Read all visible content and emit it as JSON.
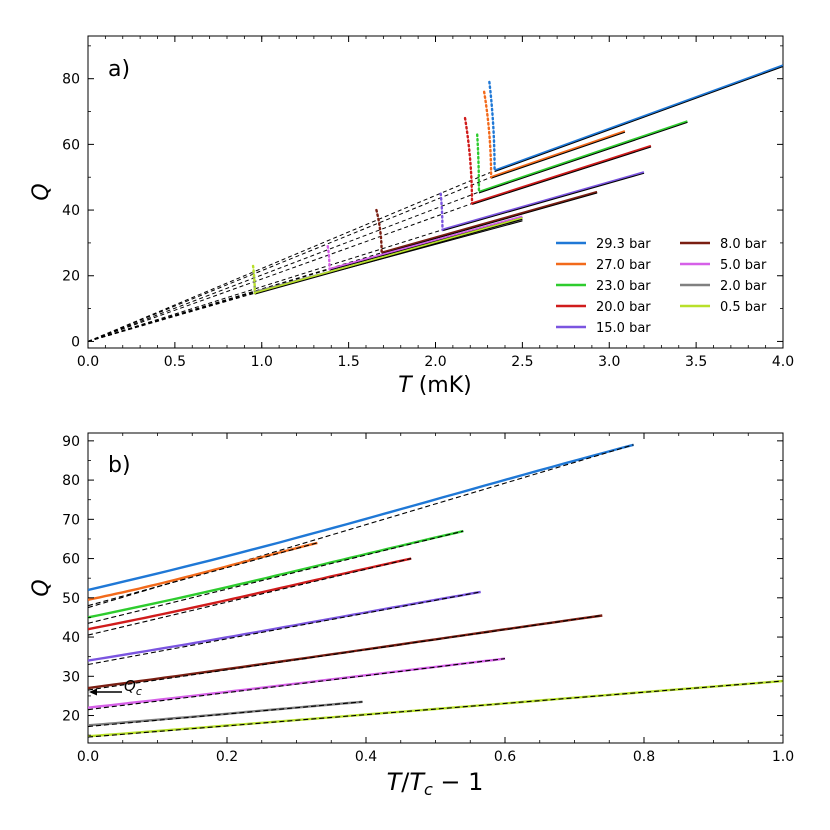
{
  "colors": {
    "p29_3": "#1f78d6",
    "p27_0": "#f26a1b",
    "p23_0": "#2ecc2e",
    "p20_0": "#d01c1c",
    "p15_0": "#7b55e0",
    "p8_0": "#7a1e12",
    "p5_0": "#d660e8",
    "p2_0": "#808080",
    "p0_5": "#b8e02a",
    "fit": "#000000"
  },
  "chart_data": [
    {
      "type": "line",
      "panel_label": "a)",
      "title": "",
      "xlabel_symbol": "T",
      "xlabel_unit": " (mK)",
      "ylabel": "Q",
      "xlim": [
        0,
        4.0
      ],
      "ylim": [
        -2,
        93
      ],
      "xticks": [
        0.0,
        0.5,
        1.0,
        1.5,
        2.0,
        2.5,
        3.0,
        3.5,
        4.0
      ],
      "xtick_labels": [
        "0.0",
        "0.5",
        "1.0",
        "1.5",
        "2.0",
        "2.5",
        "3.0",
        "3.5",
        "4.0"
      ],
      "yticks": [
        0,
        20,
        40,
        60,
        80
      ],
      "ytick_labels": [
        "0",
        "20",
        "40",
        "60",
        "80"
      ],
      "legend_position": "lower-right",
      "legend": [
        {
          "label": "29.3 bar",
          "color_key": "p29_3"
        },
        {
          "label": "27.0 bar",
          "color_key": "p27_0"
        },
        {
          "label": "23.0 bar",
          "color_key": "p23_0"
        },
        {
          "label": "20.0 bar",
          "color_key": "p20_0"
        },
        {
          "label": "15.0 bar",
          "color_key": "p15_0"
        },
        {
          "label": "8.0 bar",
          "color_key": "p8_0"
        },
        {
          "label": "5.0 bar",
          "color_key": "p5_0"
        },
        {
          "label": "2.0 bar",
          "color_key": "p2_0"
        },
        {
          "label": "0.5 bar",
          "color_key": "p0_5"
        }
      ],
      "series": [
        {
          "name": "29.3 bar",
          "color_key": "p29_3",
          "tc": 2.34,
          "qc": 52,
          "t_end": 4.0,
          "q_end": 84,
          "dot_top": 79,
          "dot_t_start": 2.31
        },
        {
          "name": "27.0 bar",
          "color_key": "p27_0",
          "tc": 2.32,
          "qc": 50,
          "t_end": 3.09,
          "q_end": 64,
          "dot_top": 76,
          "dot_t_start": 2.28
        },
        {
          "name": "23.0 bar",
          "color_key": "p23_0",
          "tc": 2.25,
          "qc": 45.5,
          "t_end": 3.45,
          "q_end": 67,
          "dot_top": 63,
          "dot_t_start": 2.24
        },
        {
          "name": "20.0 bar",
          "color_key": "p20_0",
          "tc": 2.21,
          "qc": 42,
          "t_end": 3.24,
          "q_end": 59.5,
          "dot_top": 68,
          "dot_t_start": 2.17
        },
        {
          "name": "15.0 bar",
          "color_key": "p15_0",
          "tc": 2.04,
          "qc": 34,
          "t_end": 3.2,
          "q_end": 51.5,
          "dot_top": 45,
          "dot_t_start": 2.03
        },
        {
          "name": "8.0 bar",
          "color_key": "p8_0",
          "tc": 1.69,
          "qc": 27,
          "t_end": 2.93,
          "q_end": 45.5,
          "dot_top": 40,
          "dot_t_start": 1.66
        },
        {
          "name": "5.0 bar",
          "color_key": "p5_0",
          "tc": 1.39,
          "qc": 22,
          "t_end": 2.5,
          "q_end": 38,
          "dot_top": 29,
          "dot_t_start": 1.38
        },
        {
          "name": "2.0 bar",
          "color_key": "p2_0",
          "tc": 0.96,
          "qc": 15,
          "t_end": 2.5,
          "q_end": 37,
          "dot_top": 21,
          "dot_t_start": 0.95
        },
        {
          "name": "0.5 bar",
          "color_key": "p0_5",
          "tc": 0.96,
          "qc": 14.7,
          "t_end": 2.5,
          "q_end": 37.5,
          "dot_top": 23,
          "dot_t_start": 0.95
        }
      ]
    },
    {
      "type": "line",
      "panel_label": "b)",
      "title": "",
      "xlabel": "T/Tc − 1",
      "xlabel_T": "T",
      "xlabel_slash": "/",
      "xlabel_Tc": "T",
      "xlabel_sub": "c",
      "xlabel_rest": " − 1",
      "ylabel": "Q",
      "xlim": [
        0,
        1.0
      ],
      "ylim": [
        13,
        92
      ],
      "xticks": [
        0.0,
        0.2,
        0.4,
        0.6,
        0.8,
        1.0
      ],
      "xtick_labels": [
        "0.0",
        "0.2",
        "0.4",
        "0.6",
        "0.8",
        "1.0"
      ],
      "yticks": [
        20,
        30,
        40,
        50,
        60,
        70,
        80,
        90
      ],
      "ytick_labels": [
        "20",
        "30",
        "40",
        "50",
        "60",
        "70",
        "80",
        "90"
      ],
      "annotation": {
        "text_main": "Q",
        "text_sub": "c",
        "arrow_to_y": 26
      },
      "series": [
        {
          "name": "29.3 bar",
          "color_key": "p29_3",
          "x_end": 0.785,
          "y_start": 52,
          "y_end": 89,
          "curve": 1.0,
          "fit_y0": 47.5
        },
        {
          "name": "27.0 bar",
          "color_key": "p27_0",
          "x_end": 0.33,
          "y_start": 49.5,
          "y_end": 64,
          "curve": 0.5,
          "fit_y0": 48
        },
        {
          "name": "23.0 bar",
          "color_key": "p23_0",
          "x_end": 0.54,
          "y_start": 45,
          "y_end": 67,
          "curve": 0.5,
          "fit_y0": 43.5
        },
        {
          "name": "20.0 bar",
          "color_key": "p20_0",
          "x_end": 0.465,
          "y_start": 42,
          "y_end": 60,
          "curve": 0.4,
          "fit_y0": 40.5
        },
        {
          "name": "15.0 bar",
          "color_key": "p15_0",
          "x_end": 0.565,
          "y_start": 34,
          "y_end": 51.5,
          "curve": 0.3,
          "fit_y0": 33
        },
        {
          "name": "8.0 bar",
          "color_key": "p8_0",
          "x_end": 0.74,
          "y_start": 27,
          "y_end": 45.5,
          "curve": 0.2,
          "fit_y0": 26.5
        },
        {
          "name": "5.0 bar",
          "color_key": "p5_0",
          "x_end": 0.6,
          "y_start": 22,
          "y_end": 34.5,
          "curve": 0.15,
          "fit_y0": 21.5
        },
        {
          "name": "2.0 bar",
          "color_key": "p2_0",
          "x_end": 0.395,
          "y_start": 17.5,
          "y_end": 23.5,
          "curve": 0.1,
          "fit_y0": 17.2
        },
        {
          "name": "0.5 bar",
          "color_key": "p0_5",
          "x_end": 1.0,
          "y_start": 14.7,
          "y_end": 28.8,
          "curve": 0.1,
          "fit_y0": 14.5
        }
      ]
    }
  ]
}
